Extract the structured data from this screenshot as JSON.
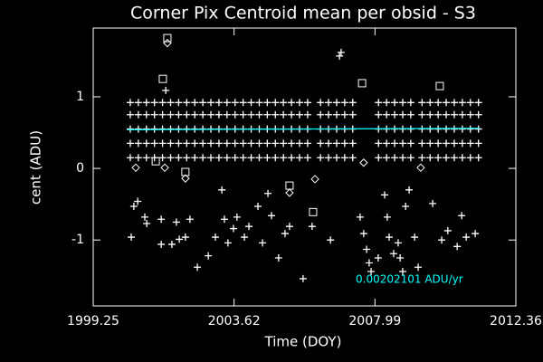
{
  "chart_data": {
    "type": "scatter",
    "title": "Corner Pix Centroid mean per obsid - S3",
    "x_label": "Time (DOY)",
    "y_label": "cent (ADU)",
    "annotation": {
      "text": "0.00202101 ADU/yr",
      "color": "#00ffff"
    },
    "background": "#000000",
    "xlim": [
      1999.25,
      2012.36
    ],
    "xticks": [
      1999.25,
      2003.62,
      2007.99,
      2012.36
    ],
    "ylim": [
      -1.92,
      1.96
    ],
    "yticks": [
      -1,
      0,
      1
    ],
    "series": [
      {
        "mode": "markers",
        "marker": "plus",
        "color": "#ffffff",
        "x": [
          2000.4,
          2000.65,
          2000.9,
          2001.15,
          2001.4,
          2001.65,
          2001.9,
          2002.15,
          2002.4,
          2002.65,
          2002.9,
          2003.15,
          2003.4,
          2003.65,
          2003.9,
          2004.15,
          2004.4,
          2004.65,
          2004.9,
          2005.15,
          2005.4,
          2005.65,
          2005.9,
          2006.3,
          2006.55,
          2006.8,
          2007.05,
          2007.3,
          2008.1,
          2008.35,
          2008.6,
          2008.85,
          2009.1,
          2009.45,
          2009.7,
          2009.95,
          2010.2,
          2010.45,
          2010.7,
          2010.95,
          2011.2
        ],
        "values": [
          0.15,
          0.15,
          0.15,
          0.15,
          0.15,
          0.15,
          0.15,
          0.15,
          0.15,
          0.15,
          0.15,
          0.15,
          0.15,
          0.15,
          0.15,
          0.15,
          0.15,
          0.15,
          0.15,
          0.15,
          0.15,
          0.15,
          0.15,
          0.15,
          0.15,
          0.15,
          0.15,
          0.15,
          0.15,
          0.15,
          0.15,
          0.15,
          0.15,
          0.15,
          0.15,
          0.15,
          0.15,
          0.15,
          0.15,
          0.15,
          0.15
        ]
      },
      {
        "mode": "markers",
        "marker": "plus",
        "color": "#ffffff",
        "x": [
          2000.4,
          2000.65,
          2000.9,
          2001.15,
          2001.4,
          2001.65,
          2001.9,
          2002.15,
          2002.4,
          2002.65,
          2002.9,
          2003.15,
          2003.4,
          2003.65,
          2003.9,
          2004.15,
          2004.4,
          2004.65,
          2004.9,
          2005.15,
          2005.4,
          2005.65,
          2005.9,
          2006.3,
          2006.55,
          2006.8,
          2007.05,
          2007.3,
          2008.1,
          2008.35,
          2008.6,
          2008.85,
          2009.1,
          2009.45,
          2009.7,
          2009.95,
          2010.2,
          2010.45,
          2010.7,
          2010.95,
          2011.2
        ],
        "values": [
          0.35,
          0.35,
          0.35,
          0.35,
          0.35,
          0.35,
          0.35,
          0.35,
          0.35,
          0.35,
          0.35,
          0.35,
          0.35,
          0.35,
          0.35,
          0.35,
          0.35,
          0.35,
          0.35,
          0.35,
          0.35,
          0.35,
          0.35,
          0.35,
          0.35,
          0.35,
          0.35,
          0.35,
          0.35,
          0.35,
          0.35,
          0.35,
          0.35,
          0.35,
          0.35,
          0.35,
          0.35,
          0.35,
          0.35,
          0.35,
          0.35
        ]
      },
      {
        "mode": "markers",
        "marker": "plus",
        "color": "#ffffff",
        "x": [
          2000.4,
          2000.65,
          2000.9,
          2001.15,
          2001.4,
          2001.65,
          2001.9,
          2002.15,
          2002.4,
          2002.65,
          2002.9,
          2003.15,
          2003.4,
          2003.65,
          2003.9,
          2004.15,
          2004.4,
          2004.65,
          2004.9,
          2005.15,
          2005.4,
          2005.65,
          2005.9,
          2006.3,
          2006.55,
          2006.8,
          2007.05,
          2007.3,
          2008.1,
          2008.35,
          2008.6,
          2008.85,
          2009.1,
          2009.45,
          2009.7,
          2009.95,
          2010.2,
          2010.45,
          2010.7,
          2010.95,
          2011.2
        ],
        "values": [
          0.55,
          0.55,
          0.55,
          0.55,
          0.55,
          0.55,
          0.55,
          0.55,
          0.55,
          0.55,
          0.55,
          0.55,
          0.55,
          0.55,
          0.55,
          0.55,
          0.55,
          0.55,
          0.55,
          0.55,
          0.55,
          0.55,
          0.55,
          0.55,
          0.55,
          0.55,
          0.55,
          0.55,
          0.55,
          0.55,
          0.55,
          0.55,
          0.55,
          0.55,
          0.55,
          0.55,
          0.55,
          0.55,
          0.55,
          0.55,
          0.55
        ]
      },
      {
        "mode": "markers",
        "marker": "plus",
        "color": "#ffffff",
        "x": [
          2000.4,
          2000.65,
          2000.9,
          2001.15,
          2001.4,
          2001.65,
          2001.9,
          2002.15,
          2002.4,
          2002.65,
          2002.9,
          2003.15,
          2003.4,
          2003.65,
          2003.9,
          2004.15,
          2004.4,
          2004.65,
          2004.9,
          2005.15,
          2005.4,
          2005.65,
          2005.9,
          2006.3,
          2006.55,
          2006.8,
          2007.05,
          2007.3,
          2008.1,
          2008.35,
          2008.6,
          2008.85,
          2009.1,
          2009.45,
          2009.7,
          2009.95,
          2010.2,
          2010.45,
          2010.7,
          2010.95,
          2011.2
        ],
        "values": [
          0.75,
          0.75,
          0.75,
          0.75,
          0.75,
          0.75,
          0.75,
          0.75,
          0.75,
          0.75,
          0.75,
          0.75,
          0.75,
          0.75,
          0.75,
          0.75,
          0.75,
          0.75,
          0.75,
          0.75,
          0.75,
          0.75,
          0.75,
          0.75,
          0.75,
          0.75,
          0.75,
          0.75,
          0.75,
          0.75,
          0.75,
          0.75,
          0.75,
          0.75,
          0.75,
          0.75,
          0.75,
          0.75,
          0.75,
          0.75,
          0.75
        ]
      },
      {
        "mode": "markers",
        "marker": "plus",
        "color": "#ffffff",
        "x": [
          2000.4,
          2000.65,
          2000.9,
          2001.15,
          2001.4,
          2001.65,
          2001.9,
          2002.15,
          2002.4,
          2002.65,
          2002.9,
          2003.15,
          2003.4,
          2003.65,
          2003.9,
          2004.15,
          2004.4,
          2004.65,
          2004.9,
          2005.15,
          2005.4,
          2005.65,
          2005.9,
          2006.3,
          2006.55,
          2006.8,
          2007.05,
          2007.3,
          2008.1,
          2008.35,
          2008.6,
          2008.85,
          2009.1,
          2009.45,
          2009.7,
          2009.95,
          2010.2,
          2010.45,
          2010.7,
          2010.95,
          2011.2
        ],
        "values": [
          0.92,
          0.92,
          0.92,
          0.92,
          0.92,
          0.92,
          0.92,
          0.92,
          0.92,
          0.92,
          0.92,
          0.92,
          0.92,
          0.92,
          0.92,
          0.92,
          0.92,
          0.92,
          0.92,
          0.92,
          0.92,
          0.92,
          0.92,
          0.92,
          0.92,
          0.92,
          0.92,
          0.92,
          0.92,
          0.92,
          0.92,
          0.92,
          0.92,
          0.92,
          0.92,
          0.92,
          0.92,
          0.92,
          0.92,
          0.92,
          0.92
        ]
      },
      {
        "mode": "markers",
        "marker": "plus",
        "color": "#ffffff",
        "x": [
          2000.43,
          2000.51,
          2000.63,
          2000.85,
          2000.91,
          2001.36,
          2001.36,
          2001.5,
          2001.69,
          2001.83,
          2001.92,
          2002.11,
          2002.25,
          2002.48,
          2002.82,
          2003.04,
          2003.24,
          2003.32,
          2003.43,
          2003.6,
          2003.71,
          2003.94,
          2004.08,
          2004.36,
          2004.5,
          2004.67,
          2004.78,
          2005.0,
          2005.2,
          2005.34,
          2005.76,
          2006.04,
          2006.61,
          2006.89,
          2006.94,
          2007.53,
          2007.64,
          2007.73,
          2007.81,
          2007.87,
          2008.09,
          2008.29,
          2008.37,
          2008.43,
          2008.57,
          2008.71,
          2008.77,
          2008.85,
          2008.94,
          2009.05,
          2009.22,
          2009.33,
          2009.78,
          2010.06,
          2010.25,
          2010.54,
          2010.68,
          2010.82,
          2011.1
        ],
        "values": [
          -0.96,
          -0.53,
          -0.46,
          -0.68,
          -0.77,
          -1.06,
          -0.71,
          1.09,
          -1.06,
          -0.75,
          -0.99,
          -0.96,
          -0.71,
          -1.38,
          -1.22,
          -0.96,
          -0.3,
          -0.71,
          -1.04,
          -0.84,
          -0.68,
          -0.96,
          -0.81,
          -0.53,
          -1.04,
          -0.35,
          -0.66,
          -1.25,
          -0.91,
          -0.81,
          -1.54,
          -0.81,
          -1.0,
          1.57,
          1.62,
          -0.68,
          -0.91,
          -1.13,
          -1.32,
          -1.44,
          -1.25,
          -0.37,
          -0.68,
          -0.96,
          -1.19,
          -1.04,
          -1.25,
          -1.44,
          -0.53,
          -0.3,
          -0.96,
          -1.38,
          -0.49,
          -1.0,
          -0.87,
          -1.09,
          -0.66,
          -0.96,
          -0.91
        ]
      },
      {
        "mode": "markers",
        "marker": "diamond",
        "color": "#ffffff",
        "x": [
          2001.55,
          2001.47,
          2000.57,
          2002.11,
          2005.34,
          2006.13,
          2007.64,
          2009.41
        ],
        "values": [
          1.75,
          0.01,
          0.01,
          -0.14,
          -0.34,
          -0.15,
          0.08,
          0.01
        ]
      },
      {
        "mode": "markers",
        "marker": "square",
        "color": "#ffffff",
        "x": [
          2001.55,
          2001.41,
          2002.11,
          2005.34,
          2006.07,
          2007.59,
          2010.0,
          2001.19
        ],
        "values": [
          1.82,
          1.25,
          -0.05,
          -0.24,
          -0.61,
          1.19,
          1.15,
          0.1
        ]
      },
      {
        "mode": "line",
        "color": "#00ffff",
        "x": [
          2000.3,
          2011.24
        ],
        "values": [
          0.54,
          0.56
        ]
      }
    ]
  }
}
